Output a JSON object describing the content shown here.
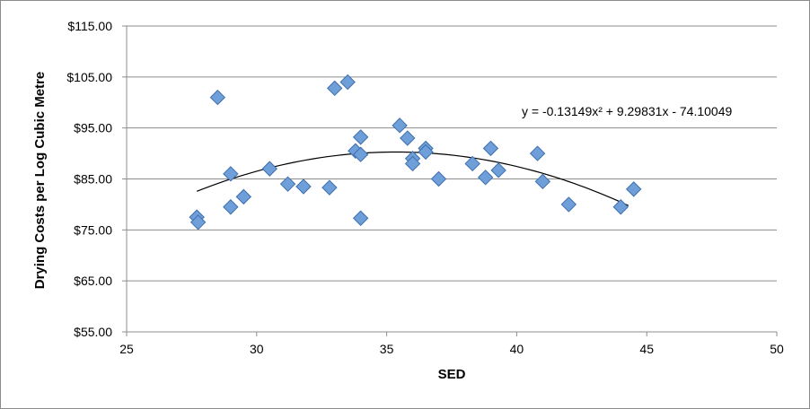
{
  "chart_data": {
    "type": "scatter",
    "xlabel": "SED",
    "ylabel": "Drying Costs per Log Cubic Metre",
    "xlim": [
      25,
      50
    ],
    "ylim": [
      55,
      115
    ],
    "x_ticks": [
      "25",
      "30",
      "35",
      "40",
      "45",
      "50"
    ],
    "y_ticks": [
      "$55.00",
      "$65.00",
      "$75.00",
      "$85.00",
      "$95.00",
      "$105.00",
      "$115.00"
    ],
    "x_tick_values": [
      25,
      30,
      35,
      40,
      45,
      50
    ],
    "y_tick_values": [
      55,
      65,
      75,
      85,
      95,
      105,
      115
    ],
    "grid": "horizontal",
    "marker": "diamond",
    "marker_color": "#6f9fd8",
    "marker_edge_color": "#3f6fae",
    "trendline": {
      "type": "polynomial",
      "coefficients": [
        -0.13149,
        9.29831,
        -74.10049
      ],
      "x_range": [
        27.7,
        44.3
      ],
      "color": "#000000",
      "equation": "y = -0.13149x² + 9.29831x - 74.10049"
    },
    "points": [
      {
        "x": 27.7,
        "y": 77.5
      },
      {
        "x": 27.75,
        "y": 76.5
      },
      {
        "x": 28.5,
        "y": 101
      },
      {
        "x": 29.0,
        "y": 86
      },
      {
        "x": 29.0,
        "y": 79.5
      },
      {
        "x": 29.5,
        "y": 81.5
      },
      {
        "x": 30.5,
        "y": 87
      },
      {
        "x": 31.2,
        "y": 84
      },
      {
        "x": 31.8,
        "y": 83.5
      },
      {
        "x": 32.8,
        "y": 83.3
      },
      {
        "x": 33.0,
        "y": 102.8
      },
      {
        "x": 33.5,
        "y": 104
      },
      {
        "x": 33.8,
        "y": 90.5
      },
      {
        "x": 34.0,
        "y": 93.2
      },
      {
        "x": 34.0,
        "y": 89.8
      },
      {
        "x": 34.0,
        "y": 77.3
      },
      {
        "x": 35.5,
        "y": 95.5
      },
      {
        "x": 35.8,
        "y": 93
      },
      {
        "x": 36.0,
        "y": 89
      },
      {
        "x": 36.0,
        "y": 88
      },
      {
        "x": 36.5,
        "y": 91
      },
      {
        "x": 36.5,
        "y": 90.3
      },
      {
        "x": 37.0,
        "y": 85
      },
      {
        "x": 38.3,
        "y": 88
      },
      {
        "x": 38.8,
        "y": 85.3
      },
      {
        "x": 39.0,
        "y": 91
      },
      {
        "x": 39.3,
        "y": 86.7
      },
      {
        "x": 40.8,
        "y": 90
      },
      {
        "x": 41.0,
        "y": 84.5
      },
      {
        "x": 42.0,
        "y": 80
      },
      {
        "x": 44.0,
        "y": 79.5
      },
      {
        "x": 44.5,
        "y": 83
      }
    ]
  }
}
